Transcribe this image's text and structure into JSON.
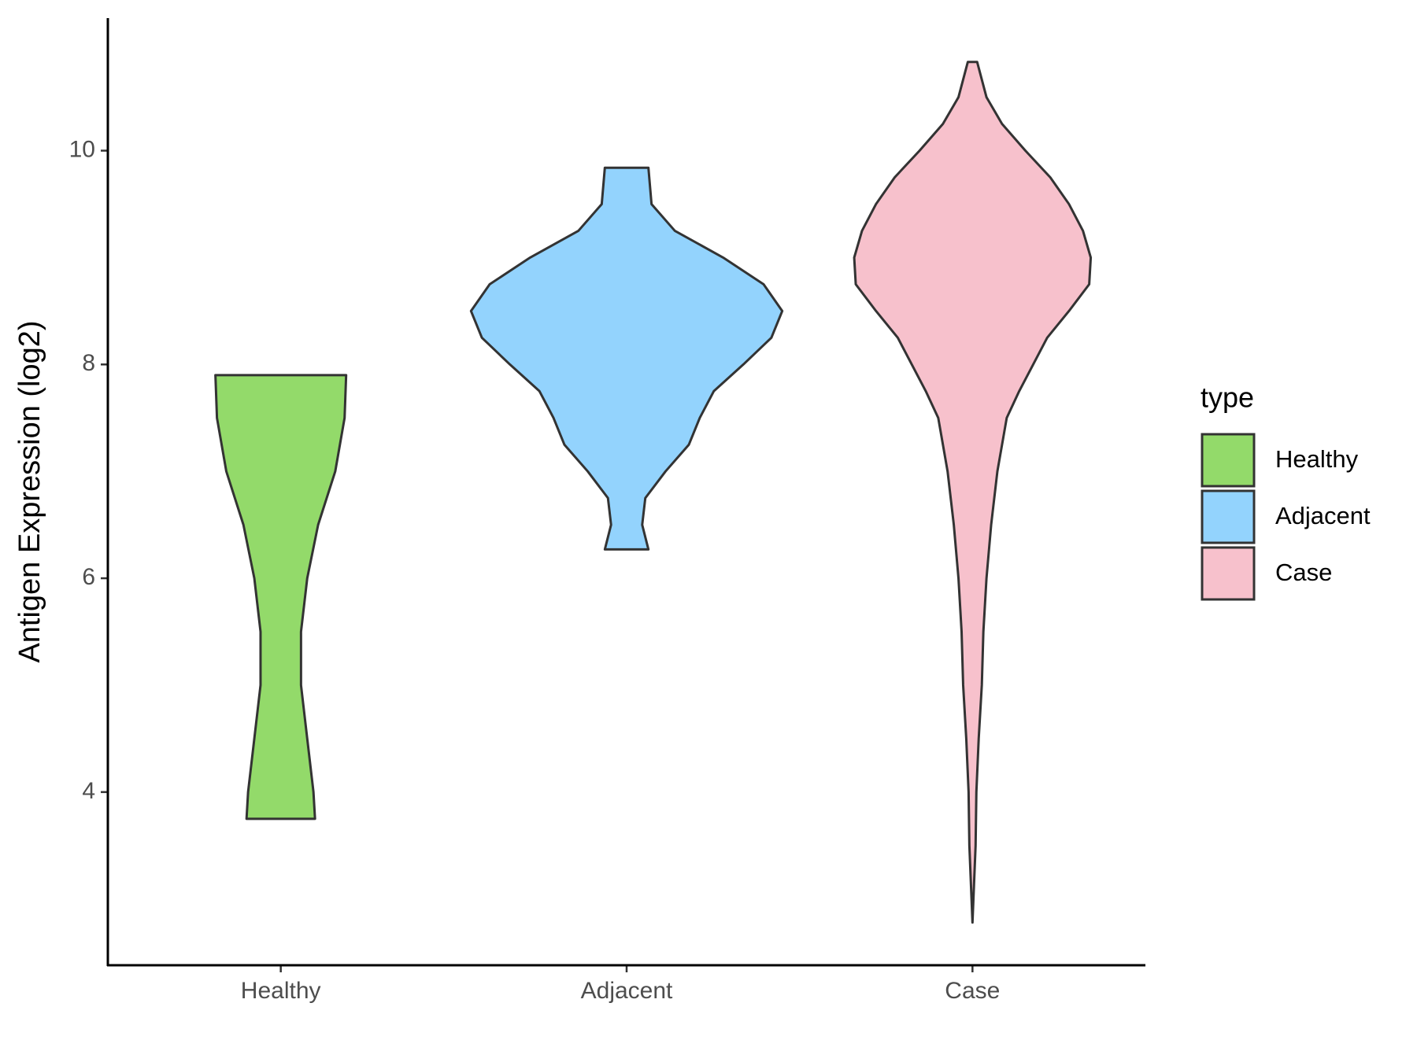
{
  "chart_data": {
    "type": "violin",
    "y_label": "Antigen Expression (log2)",
    "categories": [
      "Healthy",
      "Adjacent",
      "Case"
    ],
    "legend_title": "type",
    "ylim": [
      2.38,
      11.24
    ],
    "yticks": [
      4,
      6,
      8,
      10
    ],
    "grid": false,
    "series": [
      {
        "name": "Healthy",
        "color": "#93da6a",
        "y": [
          7.9,
          7.5,
          7.0,
          6.5,
          6.0,
          5.5,
          5.0,
          4.5,
          4.0,
          3.75
        ],
        "density": [
          0.42,
          0.41,
          0.35,
          0.24,
          0.17,
          0.13,
          0.13,
          0.17,
          0.21,
          0.22
        ]
      },
      {
        "name": "Adjacent",
        "color": "#93d3fd",
        "y": [
          9.84,
          9.5,
          9.25,
          9.0,
          8.75,
          8.5,
          8.25,
          8.0,
          7.75,
          7.5,
          7.25,
          7.0,
          6.75,
          6.5,
          6.27
        ],
        "density": [
          0.14,
          0.16,
          0.31,
          0.62,
          0.88,
          1.0,
          0.93,
          0.75,
          0.56,
          0.47,
          0.4,
          0.25,
          0.12,
          0.1,
          0.14
        ]
      },
      {
        "name": "Case",
        "color": "#f7c1cc",
        "y": [
          10.83,
          10.5,
          10.25,
          10.0,
          9.75,
          9.5,
          9.25,
          9.0,
          8.75,
          8.5,
          8.25,
          8.0,
          7.75,
          7.5,
          7.0,
          6.5,
          6.0,
          5.5,
          5.0,
          4.5,
          4.0,
          3.5,
          2.78
        ],
        "density": [
          0.03,
          0.09,
          0.19,
          0.34,
          0.5,
          0.62,
          0.71,
          0.76,
          0.75,
          0.62,
          0.48,
          0.39,
          0.3,
          0.22,
          0.16,
          0.12,
          0.09,
          0.07,
          0.06,
          0.04,
          0.025,
          0.02,
          0
        ]
      }
    ]
  }
}
